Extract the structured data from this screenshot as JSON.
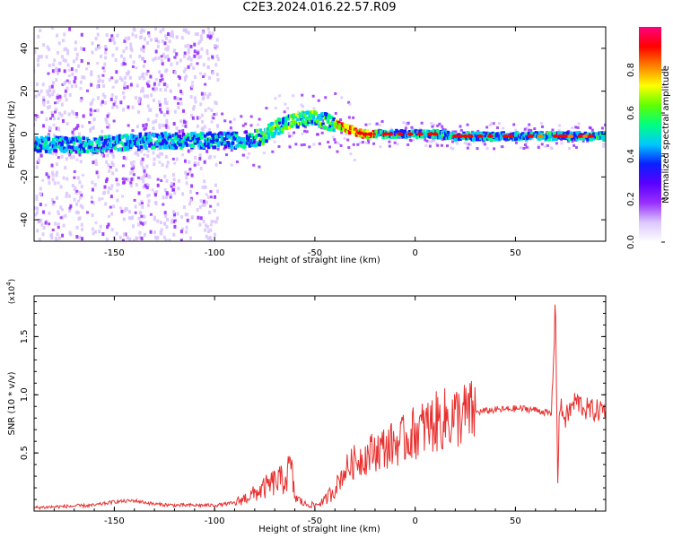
{
  "title": "C2E3.2024.016.22.57.R09",
  "chart_data": [
    {
      "type": "heatmap",
      "name": "spectrogram",
      "xlabel": "Height of straight line (km)",
      "ylabel": "Frequency (Hz)",
      "xlim": [
        -190,
        95
      ],
      "ylim": [
        -50,
        50
      ],
      "xticks": [
        -150,
        -100,
        -50,
        0,
        50
      ],
      "yticks": [
        -40,
        -20,
        0,
        20,
        40
      ],
      "colorbar": {
        "label": "Normalized spectral amplitude",
        "range": [
          0.0,
          1.0
        ],
        "ticks": [
          0.0,
          0.2,
          0.4,
          0.6,
          0.8
        ],
        "colormap": [
          "#ffffff",
          "#dcc8ff",
          "#9a30ff",
          "#5a00ff",
          "#0a20ff",
          "#00c8ff",
          "#00ff80",
          "#60ff00",
          "#ffff00",
          "#ff8000",
          "#ff0000",
          "#ff0080"
        ]
      },
      "ridge": {
        "x": [
          -190,
          -160,
          -130,
          -110,
          -100,
          -90,
          -80,
          -75,
          -70,
          -65,
          -60,
          -55,
          -50,
          -45,
          -40,
          -35,
          -30,
          -25,
          -20,
          -10,
          0,
          10,
          20,
          30,
          50,
          70,
          80,
          95
        ],
        "y": [
          -5,
          -5,
          -3,
          -3,
          -3,
          -3,
          -2,
          -1,
          3,
          5,
          6,
          7,
          7,
          6,
          5,
          3,
          1,
          0,
          0,
          0,
          0,
          0,
          -1,
          -1,
          -1,
          -1,
          -1,
          -1
        ]
      },
      "noise_columns_x": [
        -185,
        -172,
        -155,
        -140,
        -130,
        -118,
        -105
      ]
    },
    {
      "type": "line",
      "name": "snr",
      "xlabel": "Height of straight line (km)",
      "ylabel": "SNR (10 * v/v)",
      "yscale_label": "(x10",
      "yscale_exponent": "4",
      "yscale_suffix": ")",
      "xlim": [
        -190,
        95
      ],
      "ylim": [
        0,
        18500
      ],
      "xticks": [
        -150,
        -100,
        -50,
        0,
        50
      ],
      "yticks": [
        5000,
        10000,
        15000
      ],
      "ytick_labels": [
        "0.5",
        "1.0",
        "1.5"
      ],
      "color": "#e8312f",
      "x": [
        -190,
        -160,
        -150,
        -140,
        -130,
        -120,
        -110,
        -100,
        -90,
        -80,
        -75,
        -70,
        -65,
        -62,
        -60,
        -55,
        -50,
        -45,
        -40,
        -35,
        -30,
        -25,
        -20,
        -15,
        -10,
        -5,
        0,
        5,
        10,
        15,
        20,
        25,
        30,
        40,
        50,
        55,
        60,
        65,
        68,
        70,
        71,
        72,
        75,
        80,
        85,
        90,
        95
      ],
      "y": [
        300,
        500,
        800,
        900,
        600,
        500,
        500,
        500,
        700,
        1500,
        2000,
        2500,
        2700,
        3800,
        1200,
        600,
        500,
        900,
        2000,
        3500,
        4300,
        4700,
        5200,
        5500,
        5800,
        6200,
        6800,
        7200,
        7600,
        7900,
        8100,
        8300,
        8500,
        8700,
        8800,
        8800,
        8700,
        8500,
        8300,
        18300,
        2500,
        9000,
        8000,
        9500,
        8800,
        8600,
        8800
      ]
    }
  ]
}
